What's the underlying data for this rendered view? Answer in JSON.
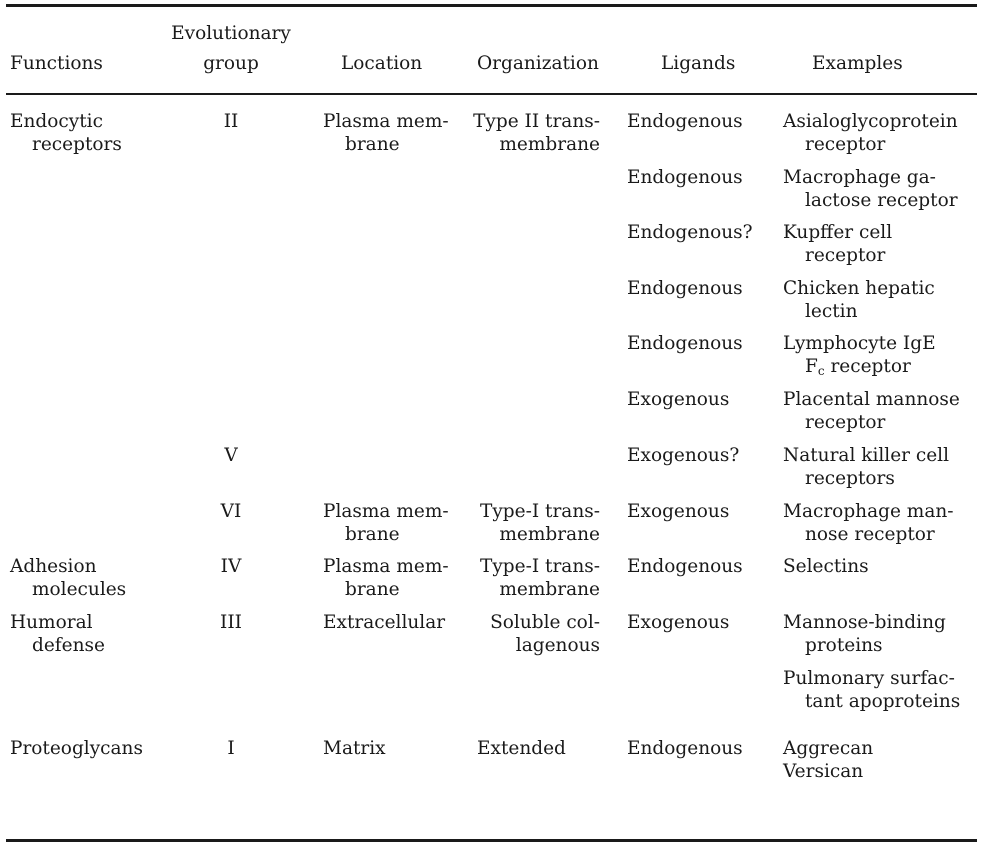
{
  "headers": {
    "functions": "Functions",
    "group_line1": "Evolutionary",
    "group_line2": "group",
    "location": "Location",
    "organization": "Organization",
    "ligands": "Ligands",
    "examples": "Examples"
  },
  "rows": [
    {
      "function": [
        "Endocytic",
        "receptors"
      ],
      "group": "II",
      "location": [
        "Plasma mem-",
        "brane"
      ],
      "organization": [
        "Type II trans-",
        "membrane"
      ],
      "ligands": "Endogenous",
      "example": [
        "Asialoglycoprotein",
        "receptor"
      ]
    },
    {
      "ligands": "Endogenous",
      "example": [
        "Macrophage ga-",
        "lactose receptor"
      ]
    },
    {
      "ligands": "Endogenous?",
      "example": [
        "Kupffer cell",
        "receptor"
      ]
    },
    {
      "ligands": "Endogenous",
      "example": [
        "Chicken hepatic",
        "lectin"
      ]
    },
    {
      "ligands": "Endogenous",
      "example": [
        "Lymphocyte IgE",
        "F",
        "c",
        " receptor"
      ]
    },
    {
      "ligands": "Exogenous",
      "example": [
        "Placental mannose",
        "receptor"
      ]
    },
    {
      "group": "V",
      "ligands": "Exogenous?",
      "example": [
        "Natural killer cell",
        "receptors"
      ]
    },
    {
      "group": "VI",
      "location": [
        "Plasma mem-",
        "brane"
      ],
      "organization": [
        "Type-I trans-",
        "membrane"
      ],
      "ligands": "Exogenous",
      "example": [
        "Macrophage man-",
        "nose receptor"
      ]
    },
    {
      "function": [
        "Adhesion",
        "molecules"
      ],
      "group": "IV",
      "location": [
        "Plasma mem-",
        "brane"
      ],
      "organization": [
        "Type-I trans-",
        "membrane"
      ],
      "ligands": "Endogenous",
      "example": [
        "Selectins"
      ]
    },
    {
      "function": [
        "Humoral",
        "defense"
      ],
      "group": "III",
      "location": [
        "Extracellular"
      ],
      "organization": [
        "Soluble col-",
        "lagenous"
      ],
      "ligands": "Exogenous",
      "example": [
        "Mannose-binding",
        "proteins"
      ]
    },
    {
      "example": [
        "Pulmonary surfac-",
        "tant apoproteins"
      ]
    },
    {
      "function": [
        "Proteoglycans"
      ],
      "group": "I",
      "location": [
        "Matrix"
      ],
      "organization": [
        "Extended"
      ],
      "ligands": "Endogenous",
      "example": [
        "Aggrecan",
        "Versican"
      ]
    }
  ]
}
